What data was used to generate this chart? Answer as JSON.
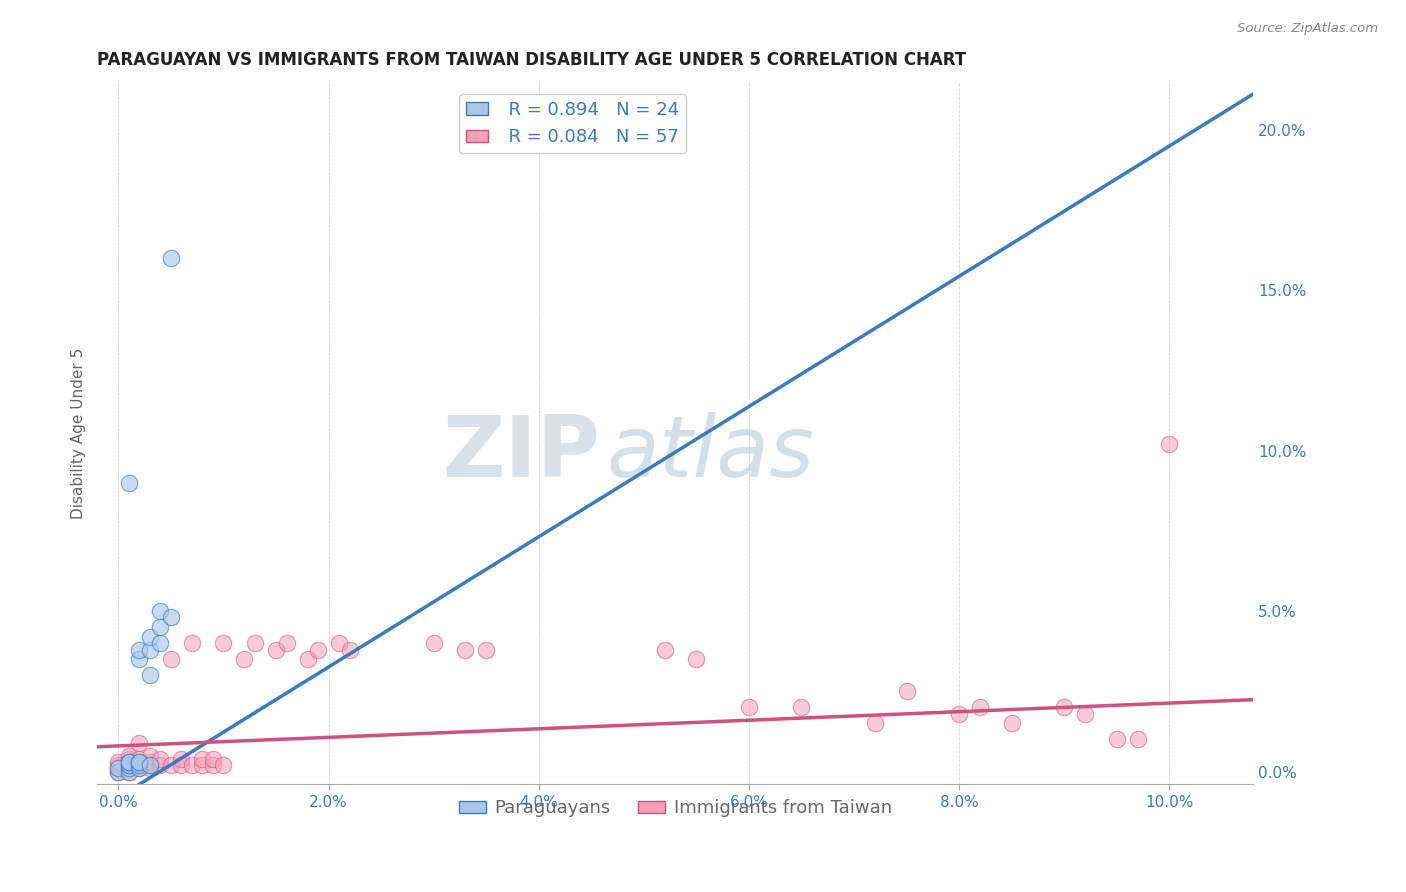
{
  "title": "PARAGUAYAN VS IMMIGRANTS FROM TAIWAN DISABILITY AGE UNDER 5 CORRELATION CHART",
  "source": "Source: ZipAtlas.com",
  "ylabel": "Disability Age Under 5",
  "x_tick_labels": [
    "0.0%",
    "2.0%",
    "4.0%",
    "6.0%",
    "8.0%",
    "10.0%"
  ],
  "y_tick_labels_right": [
    "0.0%",
    "5.0%",
    "10.0%",
    "15.0%",
    "20.0%"
  ],
  "x_ticks": [
    0.0,
    0.02,
    0.04,
    0.06,
    0.08,
    0.1
  ],
  "y_ticks_right": [
    0.0,
    0.05,
    0.1,
    0.15,
    0.2
  ],
  "xlim": [
    -0.002,
    0.108
  ],
  "ylim": [
    -0.004,
    0.215
  ],
  "legend_r1": "R = 0.894",
  "legend_n1": "N = 24",
  "legend_r2": "R = 0.084",
  "legend_n2": "N = 57",
  "blue_color": "#a8c8e8",
  "pink_color": "#f4a0b8",
  "blue_line_color": "#3a7bbf",
  "pink_line_color": "#d05080",
  "watermark_zip": "ZIP",
  "watermark_atlas": "atlas",
  "paraguayan_x": [
    0.0,
    0.0,
    0.001,
    0.001,
    0.001,
    0.001,
    0.001,
    0.001,
    0.001,
    0.002,
    0.002,
    0.002,
    0.002,
    0.002,
    0.002,
    0.003,
    0.003,
    0.003,
    0.003,
    0.004,
    0.004,
    0.004,
    0.005,
    0.005
  ],
  "paraguayan_y": [
    0.0,
    0.001,
    0.0,
    0.001,
    0.002,
    0.002,
    0.003,
    0.003,
    0.09,
    0.001,
    0.002,
    0.003,
    0.003,
    0.035,
    0.038,
    0.002,
    0.03,
    0.038,
    0.042,
    0.04,
    0.045,
    0.05,
    0.048,
    0.16
  ],
  "taiwan_x": [
    0.0,
    0.0,
    0.0,
    0.0,
    0.001,
    0.001,
    0.001,
    0.001,
    0.001,
    0.001,
    0.002,
    0.002,
    0.002,
    0.002,
    0.003,
    0.003,
    0.003,
    0.003,
    0.004,
    0.004,
    0.005,
    0.005,
    0.006,
    0.006,
    0.007,
    0.007,
    0.008,
    0.008,
    0.009,
    0.009,
    0.01,
    0.01,
    0.012,
    0.013,
    0.015,
    0.016,
    0.018,
    0.019,
    0.021,
    0.022,
    0.03,
    0.033,
    0.035,
    0.052,
    0.055,
    0.06,
    0.065,
    0.072,
    0.075,
    0.08,
    0.082,
    0.085,
    0.09,
    0.092,
    0.095,
    0.097,
    0.1
  ],
  "taiwan_y": [
    0.0,
    0.001,
    0.002,
    0.003,
    0.0,
    0.001,
    0.002,
    0.003,
    0.004,
    0.005,
    0.001,
    0.002,
    0.004,
    0.009,
    0.001,
    0.002,
    0.003,
    0.005,
    0.002,
    0.004,
    0.002,
    0.035,
    0.002,
    0.004,
    0.002,
    0.04,
    0.002,
    0.004,
    0.002,
    0.004,
    0.002,
    0.04,
    0.035,
    0.04,
    0.038,
    0.04,
    0.035,
    0.038,
    0.04,
    0.038,
    0.04,
    0.038,
    0.038,
    0.038,
    0.035,
    0.02,
    0.02,
    0.015,
    0.025,
    0.018,
    0.02,
    0.015,
    0.02,
    0.018,
    0.01,
    0.01,
    0.102
  ],
  "title_fontsize": 12,
  "axis_label_fontsize": 11,
  "tick_fontsize": 11,
  "legend_fontsize": 13,
  "marker_size": 100,
  "background_color": "#ffffff",
  "grid_color": "#cccccc"
}
